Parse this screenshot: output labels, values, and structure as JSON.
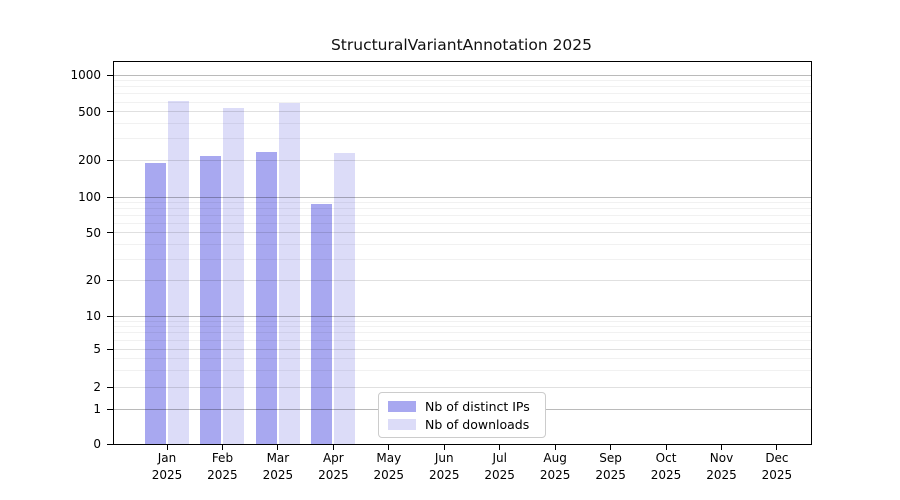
{
  "title": "StructuralVariantAnnotation 2025",
  "chart_data": {
    "type": "bar",
    "title": "StructuralVariantAnnotation 2025",
    "scale": "symlog",
    "grid": "on",
    "legend_position": "lower-center",
    "xlabel": "",
    "ylabel": "",
    "ylim": [
      0,
      1280
    ],
    "y_ticks": [
      0,
      1,
      2,
      5,
      10,
      20,
      50,
      100,
      200,
      500,
      1000
    ],
    "categories": [
      {
        "month": "Jan",
        "year": "2025"
      },
      {
        "month": "Feb",
        "year": "2025"
      },
      {
        "month": "Mar",
        "year": "2025"
      },
      {
        "month": "Apr",
        "year": "2025"
      },
      {
        "month": "May",
        "year": "2025"
      },
      {
        "month": "Jun",
        "year": "2025"
      },
      {
        "month": "Jul",
        "year": "2025"
      },
      {
        "month": "Aug",
        "year": "2025"
      },
      {
        "month": "Sep",
        "year": "2025"
      },
      {
        "month": "Oct",
        "year": "2025"
      },
      {
        "month": "Nov",
        "year": "2025"
      },
      {
        "month": "Dec",
        "year": "2025"
      }
    ],
    "series": [
      {
        "name": "Nb of distinct IPs",
        "color": "#a8a8f0",
        "values": [
          190,
          215,
          233,
          87,
          null,
          null,
          null,
          null,
          null,
          null,
          null,
          null
        ]
      },
      {
        "name": "Nb of downloads",
        "color": "#dcdcf8",
        "values": [
          610,
          540,
          590,
          230,
          null,
          null,
          null,
          null,
          null,
          null,
          null,
          null
        ]
      }
    ]
  },
  "legend": {
    "items": [
      {
        "label": "Nb of distinct IPs",
        "color": "#a8a8f0"
      },
      {
        "label": "Nb of downloads",
        "color": "#dcdcf8"
      }
    ]
  }
}
